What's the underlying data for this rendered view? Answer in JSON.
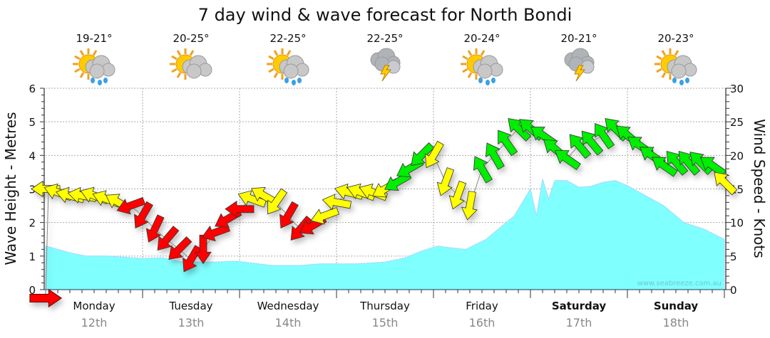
{
  "chart_data": {
    "type": "area",
    "title": "7 day wind & wave forecast for North Bondi",
    "ylabel": "Wave Height - Metres",
    "y2label": "Wind Speed - Knots",
    "ylim": [
      0,
      6
    ],
    "y2lim": [
      0,
      30
    ],
    "yticks": [
      "0",
      "1",
      "2",
      "3",
      "4",
      "5",
      "6"
    ],
    "y2ticks": [
      "0",
      "5",
      "10",
      "15",
      "20",
      "25",
      "30"
    ],
    "watermark": "www.seabreeze.com.au",
    "days": [
      {
        "name": "Monday",
        "date": "12th",
        "temp": "19-21°",
        "icon": "sun-cloud-rain",
        "bold": false
      },
      {
        "name": "Tuesday",
        "date": "13th",
        "temp": "20-25°",
        "icon": "sun-cloud",
        "bold": false
      },
      {
        "name": "Wednesday",
        "date": "14th",
        "temp": "22-25°",
        "icon": "sun-cloud-rain",
        "bold": false
      },
      {
        "name": "Thursday",
        "date": "15th",
        "temp": "22-25°",
        "icon": "cloud-storm",
        "bold": false
      },
      {
        "name": "Friday",
        "date": "16th",
        "temp": "20-24°",
        "icon": "sun-cloud-rain",
        "bold": false
      },
      {
        "name": "Saturday",
        "date": "17th",
        "temp": "20-21°",
        "icon": "cloud-storm",
        "bold": true
      },
      {
        "name": "Sunday",
        "date": "18th",
        "temp": "20-23°",
        "icon": "sun-cloud-rain",
        "bold": true
      }
    ],
    "wave_height_m": [
      [
        0,
        1.3
      ],
      [
        6,
        1.1
      ],
      [
        10,
        1.0
      ],
      [
        15,
        1.0
      ],
      [
        24,
        0.93
      ],
      [
        29,
        0.95
      ],
      [
        34,
        0.82
      ],
      [
        42,
        0.82
      ],
      [
        47,
        0.85
      ],
      [
        56,
        0.72
      ],
      [
        63,
        0.72
      ],
      [
        68,
        0.77
      ],
      [
        77,
        0.77
      ],
      [
        84,
        0.82
      ],
      [
        89,
        0.95
      ],
      [
        93,
        1.15
      ],
      [
        97,
        1.3
      ],
      [
        100,
        1.25
      ],
      [
        104,
        1.2
      ],
      [
        109,
        1.5
      ],
      [
        112,
        1.8
      ],
      [
        116,
        2.2
      ],
      [
        120,
        3.0
      ],
      [
        121.5,
        2.2
      ],
      [
        123,
        3.3
      ],
      [
        124.5,
        2.7
      ],
      [
        126,
        3.25
      ],
      [
        129,
        3.25
      ],
      [
        132,
        3.05
      ],
      [
        135,
        3.08
      ],
      [
        138,
        3.2
      ],
      [
        141,
        3.25
      ],
      [
        144,
        3.1
      ],
      [
        147,
        2.9
      ],
      [
        153,
        2.5
      ],
      [
        158,
        2.0
      ],
      [
        163,
        1.8
      ],
      [
        168,
        1.5
      ]
    ],
    "wind_colors": {
      "r": "#ff0000",
      "y": "#ffff00",
      "g": "#00ee00"
    },
    "wind_knots": [
      [
        0,
        15,
        180,
        "y"
      ],
      [
        3,
        14.5,
        200,
        "y"
      ],
      [
        6,
        14,
        195,
        "y"
      ],
      [
        9,
        14,
        190,
        "y"
      ],
      [
        12,
        14,
        200,
        "y"
      ],
      [
        15,
        13.5,
        200,
        "y"
      ],
      [
        18,
        13,
        210,
        "y"
      ],
      [
        21,
        12.5,
        160,
        "r"
      ],
      [
        24,
        11,
        120,
        "r"
      ],
      [
        27,
        9,
        115,
        "r"
      ],
      [
        30,
        7.5,
        130,
        "r"
      ],
      [
        33,
        6,
        135,
        "r"
      ],
      [
        36,
        4.5,
        120,
        "r"
      ],
      [
        39,
        6,
        90,
        "r"
      ],
      [
        42,
        8.5,
        160,
        "r"
      ],
      [
        45,
        10.5,
        150,
        "r"
      ],
      [
        48,
        12,
        180,
        "r"
      ],
      [
        51,
        13.5,
        200,
        "y"
      ],
      [
        54,
        14,
        210,
        "y"
      ],
      [
        57,
        13,
        125,
        "y"
      ],
      [
        60,
        11,
        120,
        "r"
      ],
      [
        63,
        9,
        130,
        "r"
      ],
      [
        66,
        9.5,
        150,
        "r"
      ],
      [
        69,
        11,
        160,
        "y"
      ],
      [
        72,
        13,
        190,
        "y"
      ],
      [
        75,
        14.5,
        195,
        "y"
      ],
      [
        78,
        14.5,
        200,
        "y"
      ],
      [
        81,
        14.5,
        200,
        "y"
      ],
      [
        84,
        15,
        150,
        "y"
      ],
      [
        87,
        16,
        150,
        "g"
      ],
      [
        90,
        18,
        150,
        "g"
      ],
      [
        93,
        20,
        135,
        "g"
      ],
      [
        96,
        20,
        120,
        "y"
      ],
      [
        99,
        16,
        110,
        "y"
      ],
      [
        102,
        14,
        110,
        "y"
      ],
      [
        105,
        12.5,
        100,
        "y"
      ],
      [
        108,
        18,
        240,
        "g"
      ],
      [
        111,
        20,
        240,
        "g"
      ],
      [
        114,
        22,
        235,
        "g"
      ],
      [
        117,
        24,
        225,
        "g"
      ],
      [
        120,
        24,
        220,
        "g"
      ],
      [
        123,
        23,
        215,
        "g"
      ],
      [
        126,
        21,
        220,
        "g"
      ],
      [
        129,
        19.5,
        215,
        "g"
      ],
      [
        132,
        21.5,
        230,
        "g"
      ],
      [
        135,
        22,
        230,
        "g"
      ],
      [
        138,
        23,
        235,
        "g"
      ],
      [
        141,
        24,
        225,
        "g"
      ],
      [
        144,
        23,
        220,
        "g"
      ],
      [
        147,
        21.5,
        215,
        "g"
      ],
      [
        150,
        20,
        215,
        "g"
      ],
      [
        153,
        18.5,
        215,
        "g"
      ],
      [
        156,
        19,
        230,
        "g"
      ],
      [
        159,
        19,
        230,
        "g"
      ],
      [
        162,
        19,
        225,
        "g"
      ],
      [
        165,
        18.5,
        215,
        "g"
      ],
      [
        168,
        16,
        225,
        "y"
      ]
    ]
  }
}
